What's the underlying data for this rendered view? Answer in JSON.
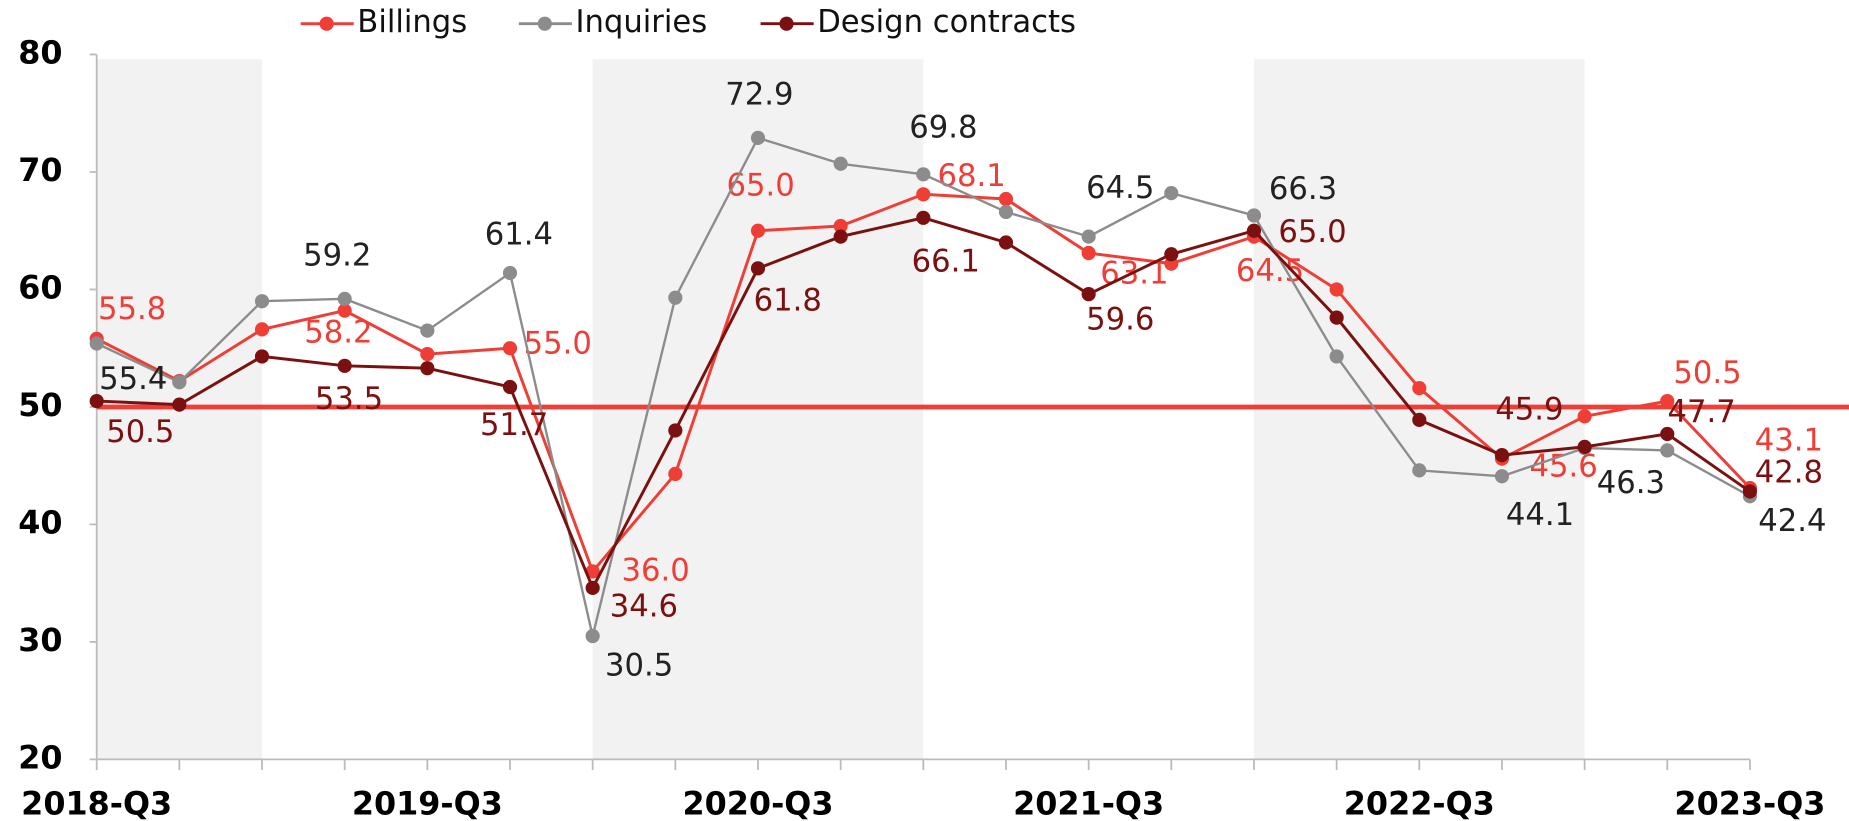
{
  "chart_data": {
    "type": "line",
    "categories": [
      "2018-Q3",
      null,
      null,
      null,
      "2019-Q3",
      null,
      null,
      null,
      "2020-Q3",
      null,
      null,
      null,
      "2021-Q3",
      null,
      null,
      null,
      "2022-Q3",
      null,
      null,
      null,
      "2023-Q3"
    ],
    "series": [
      {
        "name": "Billings",
        "color": "#ef3e36",
        "values": [
          55.8,
          52.2,
          56.6,
          58.2,
          54.5,
          55.0,
          36.0,
          44.3,
          65.0,
          65.4,
          68.1,
          67.7,
          63.1,
          62.2,
          64.5,
          60.0,
          51.6,
          45.6,
          49.2,
          50.5,
          43.1
        ],
        "value_labels": [
          "55.8",
          null,
          null,
          "58.2",
          null,
          "55.0",
          "36.0",
          null,
          "65.0",
          null,
          "68.1",
          null,
          "63.1",
          null,
          "64.5",
          null,
          null,
          "45.6",
          null,
          "50.5",
          "43.1"
        ]
      },
      {
        "name": "Inquiries",
        "color": "#8c8c8c",
        "values": [
          55.4,
          52.1,
          59.0,
          59.2,
          56.5,
          61.4,
          30.5,
          59.3,
          72.9,
          70.7,
          69.8,
          66.6,
          64.5,
          68.2,
          66.3,
          54.3,
          44.6,
          44.1,
          46.5,
          46.3,
          42.4
        ],
        "value_labels": [
          "55.4",
          null,
          null,
          "59.2",
          null,
          "61.4",
          "30.5",
          null,
          "72.9",
          null,
          "69.8",
          null,
          "64.5",
          null,
          "66.3",
          null,
          null,
          "44.1",
          null,
          "46.3",
          "42.4"
        ]
      },
      {
        "name": "Design contracts",
        "color": "#7a1010",
        "values": [
          50.5,
          50.2,
          54.3,
          53.5,
          53.3,
          51.7,
          34.6,
          48.0,
          61.8,
          64.5,
          66.1,
          64.0,
          59.6,
          63.0,
          65.0,
          57.6,
          48.9,
          45.9,
          46.6,
          47.7,
          42.8
        ],
        "value_labels": [
          "50.5",
          null,
          null,
          "53.5",
          null,
          "51.7",
          "34.6",
          null,
          "61.8",
          null,
          "66.1",
          null,
          "59.6",
          null,
          "65.0",
          null,
          null,
          "45.9",
          null,
          "47.7",
          "42.8"
        ]
      }
    ],
    "ylim": [
      20,
      80
    ],
    "yticks": [
      20,
      30,
      40,
      50,
      60,
      70,
      80
    ],
    "reference_line": 50,
    "legend": "top"
  }
}
